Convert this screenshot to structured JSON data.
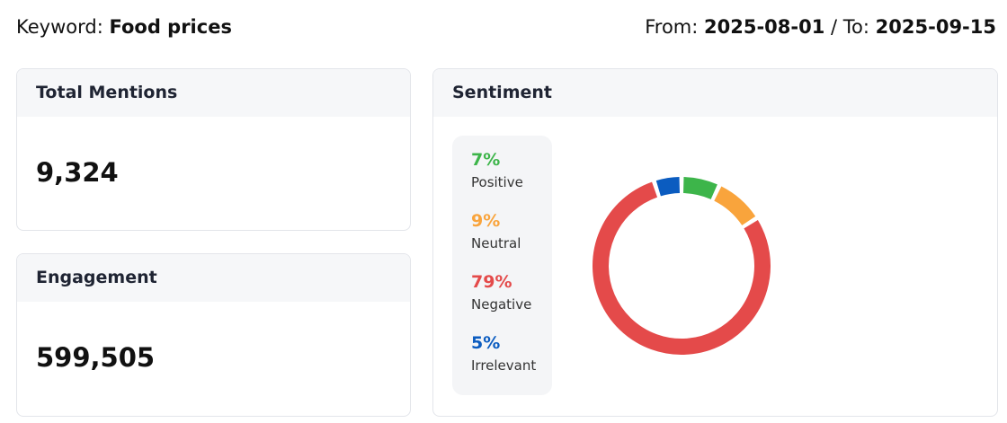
{
  "header": {
    "keyword_label": "Keyword:",
    "keyword": "Food prices",
    "from_label": "From:",
    "from": "2025-08-01",
    "separator": "/",
    "to_label": "To:",
    "to": "2025-09-15"
  },
  "cards": [
    {
      "title": "Total Mentions",
      "value": "9,324"
    },
    {
      "title": "Engagement",
      "value": "599,505"
    }
  ],
  "sentiment": {
    "title": "Sentiment",
    "chart_data": {
      "type": "pie",
      "categories": [
        "Positive",
        "Neutral",
        "Negative",
        "Irrelevant"
      ],
      "values": [
        7,
        9,
        79,
        5
      ],
      "value_labels": [
        "7%",
        "9%",
        "79%",
        "5%"
      ],
      "colors": [
        "#3db54a",
        "#f9a43c",
        "#e44a4a",
        "#0b5cc0"
      ]
    }
  }
}
